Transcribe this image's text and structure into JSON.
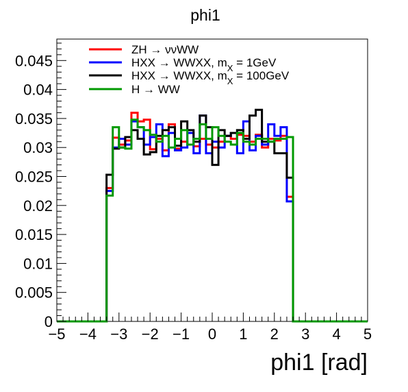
{
  "chart_data": {
    "type": "histogram-step",
    "title": "phi1",
    "xlabel": "phi1 [rad]",
    "ylabel": "",
    "xlim": [
      -5,
      5
    ],
    "ylim": [
      0,
      0.0487
    ],
    "x_ticks": [
      "−5",
      "−4",
      "−3",
      "−2",
      "−1",
      "0",
      "1",
      "2",
      "3",
      "4",
      "5"
    ],
    "x_tick_values": [
      -5,
      -4,
      -3,
      -2,
      -1,
      0,
      1,
      2,
      3,
      4,
      5
    ],
    "y_ticks": [
      "0",
      "0.005",
      "0.01",
      "0.015",
      "0.02",
      "0.025",
      "0.03",
      "0.035",
      "0.04",
      "0.045"
    ],
    "y_tick_values": [
      0,
      0.005,
      0.01,
      0.015,
      0.02,
      0.025,
      0.03,
      0.035,
      0.04,
      0.045
    ],
    "bin_range": [
      -5,
      5
    ],
    "n_bins": 50,
    "grid": false,
    "legend_position": "top-left",
    "series": [
      {
        "name": "ZH → ννWW",
        "color": "#ff0000",
        "values": [
          0,
          0,
          0,
          0,
          0,
          0,
          0,
          0,
          0.023,
          0.0317,
          0.0305,
          0.0312,
          0.036,
          0.0345,
          0.0348,
          0.0297,
          0.0315,
          0.0295,
          0.034,
          0.0298,
          0.031,
          0.0305,
          0.0302,
          0.0315,
          0.0305,
          0.03,
          0.031,
          0.032,
          0.0315,
          0.0322,
          0.032,
          0.031,
          0.0322,
          0.03,
          0.0315,
          0.0312,
          0.032,
          0.0215,
          0,
          0,
          0,
          0,
          0,
          0,
          0,
          0,
          0,
          0,
          0,
          0
        ]
      },
      {
        "name": "HXX → WWXX, m_X = 1GeV",
        "color": "#0000ff",
        "values": [
          0,
          0,
          0,
          0,
          0,
          0,
          0,
          0,
          0.0225,
          0.03,
          0.0315,
          0.0305,
          0.0345,
          0.0335,
          0.0305,
          0.0318,
          0.034,
          0.0285,
          0.0325,
          0.0295,
          0.03,
          0.0325,
          0.029,
          0.0355,
          0.029,
          0.031,
          0.03,
          0.032,
          0.0325,
          0.029,
          0.0345,
          0.0295,
          0.032,
          0.0305,
          0.034,
          0.032,
          0.0335,
          0.0207,
          0,
          0,
          0,
          0,
          0,
          0,
          0,
          0,
          0,
          0,
          0,
          0
        ]
      },
      {
        "name": "HXX → WWXX, m_X = 100GeV",
        "color": "#000000",
        "values": [
          0,
          0,
          0,
          0,
          0,
          0,
          0,
          0,
          0.0253,
          0.0298,
          0.03,
          0.0318,
          0.033,
          0.0315,
          0.0288,
          0.0292,
          0.032,
          0.033,
          0.0335,
          0.0303,
          0.0345,
          0.033,
          0.031,
          0.0355,
          0.0335,
          0.027,
          0.033,
          0.032,
          0.0325,
          0.033,
          0.0315,
          0.0355,
          0.0365,
          0.031,
          0.031,
          0.029,
          0.029,
          0.0248,
          0,
          0,
          0,
          0,
          0,
          0,
          0,
          0,
          0,
          0,
          0,
          0
        ]
      },
      {
        "name": "H → WW",
        "color": "#009900",
        "values": [
          0,
          0,
          0,
          0,
          0,
          0,
          0,
          0,
          0.0217,
          0.0335,
          0.03,
          0.0298,
          0.0348,
          0.0335,
          0.033,
          0.0322,
          0.031,
          0.032,
          0.03,
          0.0315,
          0.033,
          0.0305,
          0.0315,
          0.034,
          0.0315,
          0.0335,
          0.032,
          0.031,
          0.0305,
          0.0325,
          0.031,
          0.0305,
          0.0315,
          0.0315,
          0.031,
          0.0315,
          0.0315,
          0.0318,
          0,
          0,
          0,
          0,
          0,
          0,
          0,
          0,
          0,
          0,
          0,
          0
        ]
      }
    ]
  }
}
